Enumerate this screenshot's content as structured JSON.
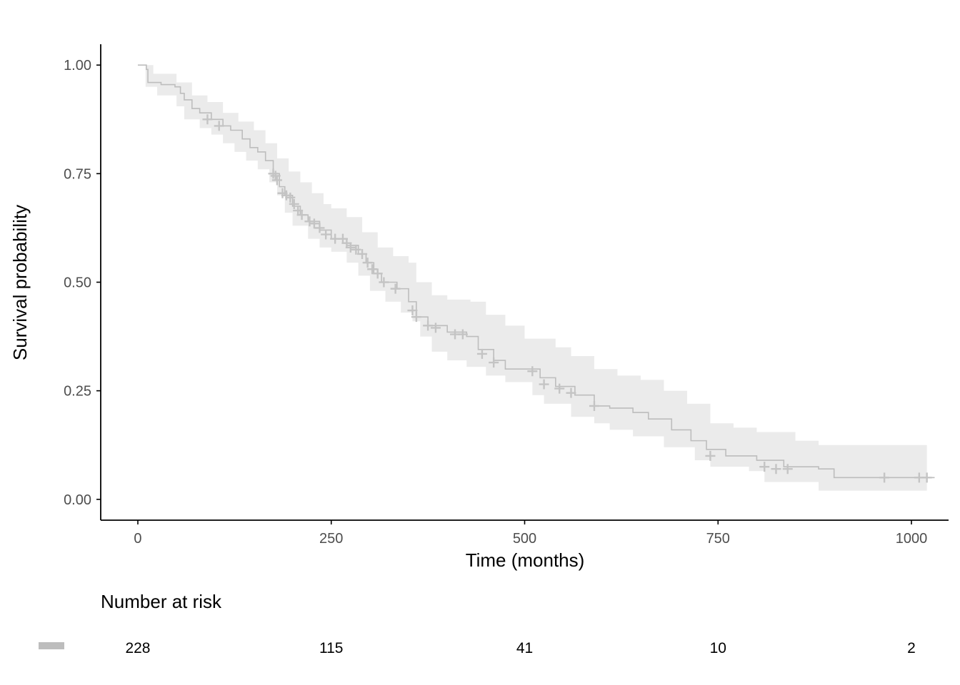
{
  "chart_data": {
    "type": "line",
    "subtype": "kaplan-meier",
    "title": "",
    "xlabel": "Time (months)",
    "ylabel": "Survival probability",
    "xlim": [
      -48,
      1048
    ],
    "ylim": [
      -0.048,
      1.048
    ],
    "x_ticks": [
      0,
      250,
      500,
      750,
      1000
    ],
    "x_tick_labels": [
      "0",
      "250",
      "500",
      "750",
      "1000"
    ],
    "y_ticks": [
      0,
      0.25,
      0.5,
      0.75,
      1
    ],
    "y_tick_labels": [
      "0.00",
      "0.25",
      "0.50",
      "0.75",
      "1.00"
    ],
    "grid": false,
    "legend": "none",
    "colors": {
      "line": "#bdbdbd",
      "band": "#ebebeb",
      "censor": "#c4c4c4",
      "axis": "#000000"
    },
    "series": [
      {
        "survival_curve": [
          [
            0,
            1.0
          ],
          [
            11,
            0.99
          ],
          [
            13,
            0.96
          ],
          [
            30,
            0.955
          ],
          [
            48,
            0.95
          ],
          [
            55,
            0.935
          ],
          [
            60,
            0.92
          ],
          [
            70,
            0.9
          ],
          [
            80,
            0.89
          ],
          [
            95,
            0.875
          ],
          [
            110,
            0.86
          ],
          [
            120,
            0.85
          ],
          [
            135,
            0.83
          ],
          [
            145,
            0.81
          ],
          [
            155,
            0.8
          ],
          [
            165,
            0.78
          ],
          [
            175,
            0.75
          ],
          [
            183,
            0.72
          ],
          [
            190,
            0.7
          ],
          [
            200,
            0.675
          ],
          [
            210,
            0.655
          ],
          [
            220,
            0.64
          ],
          [
            235,
            0.62
          ],
          [
            250,
            0.6
          ],
          [
            270,
            0.585
          ],
          [
            285,
            0.565
          ],
          [
            295,
            0.545
          ],
          [
            305,
            0.52
          ],
          [
            315,
            0.5
          ],
          [
            335,
            0.485
          ],
          [
            350,
            0.455
          ],
          [
            360,
            0.42
          ],
          [
            375,
            0.4
          ],
          [
            400,
            0.385
          ],
          [
            425,
            0.375
          ],
          [
            440,
            0.345
          ],
          [
            460,
            0.32
          ],
          [
            475,
            0.3
          ],
          [
            520,
            0.28
          ],
          [
            540,
            0.26
          ],
          [
            565,
            0.24
          ],
          [
            590,
            0.215
          ],
          [
            610,
            0.21
          ],
          [
            640,
            0.2
          ],
          [
            660,
            0.185
          ],
          [
            690,
            0.16
          ],
          [
            715,
            0.135
          ],
          [
            735,
            0.115
          ],
          [
            760,
            0.1
          ],
          [
            800,
            0.09
          ],
          [
            835,
            0.075
          ],
          [
            880,
            0.07
          ],
          [
            900,
            0.05
          ],
          [
            1030,
            0.05
          ]
        ],
        "ci_upper": [
          [
            0,
            1.0
          ],
          [
            20,
            0.98
          ],
          [
            50,
            0.96
          ],
          [
            70,
            0.93
          ],
          [
            90,
            0.915
          ],
          [
            110,
            0.89
          ],
          [
            130,
            0.87
          ],
          [
            150,
            0.85
          ],
          [
            165,
            0.82
          ],
          [
            180,
            0.785
          ],
          [
            195,
            0.755
          ],
          [
            210,
            0.73
          ],
          [
            225,
            0.705
          ],
          [
            240,
            0.68
          ],
          [
            250,
            0.67
          ],
          [
            270,
            0.65
          ],
          [
            290,
            0.615
          ],
          [
            310,
            0.58
          ],
          [
            330,
            0.56
          ],
          [
            350,
            0.545
          ],
          [
            360,
            0.5
          ],
          [
            380,
            0.47
          ],
          [
            400,
            0.46
          ],
          [
            430,
            0.455
          ],
          [
            450,
            0.425
          ],
          [
            475,
            0.4
          ],
          [
            500,
            0.37
          ],
          [
            540,
            0.35
          ],
          [
            560,
            0.33
          ],
          [
            590,
            0.3
          ],
          [
            620,
            0.285
          ],
          [
            650,
            0.275
          ],
          [
            680,
            0.25
          ],
          [
            710,
            0.22
          ],
          [
            740,
            0.175
          ],
          [
            770,
            0.165
          ],
          [
            800,
            0.155
          ],
          [
            850,
            0.135
          ],
          [
            880,
            0.125
          ],
          [
            1020,
            0.125
          ]
        ],
        "ci_lower": [
          [
            0,
            1.0
          ],
          [
            10,
            0.95
          ],
          [
            25,
            0.93
          ],
          [
            50,
            0.905
          ],
          [
            60,
            0.875
          ],
          [
            80,
            0.855
          ],
          [
            95,
            0.84
          ],
          [
            110,
            0.82
          ],
          [
            125,
            0.8
          ],
          [
            140,
            0.78
          ],
          [
            155,
            0.76
          ],
          [
            170,
            0.73
          ],
          [
            180,
            0.7
          ],
          [
            190,
            0.66
          ],
          [
            200,
            0.63
          ],
          [
            220,
            0.6
          ],
          [
            235,
            0.58
          ],
          [
            250,
            0.57
          ],
          [
            270,
            0.545
          ],
          [
            285,
            0.515
          ],
          [
            300,
            0.48
          ],
          [
            320,
            0.455
          ],
          [
            340,
            0.43
          ],
          [
            355,
            0.41
          ],
          [
            365,
            0.375
          ],
          [
            380,
            0.34
          ],
          [
            400,
            0.32
          ],
          [
            425,
            0.305
          ],
          [
            450,
            0.285
          ],
          [
            475,
            0.27
          ],
          [
            510,
            0.24
          ],
          [
            525,
            0.22
          ],
          [
            560,
            0.19
          ],
          [
            590,
            0.175
          ],
          [
            610,
            0.16
          ],
          [
            640,
            0.145
          ],
          [
            680,
            0.12
          ],
          [
            720,
            0.09
          ],
          [
            740,
            0.075
          ],
          [
            790,
            0.065
          ],
          [
            810,
            0.04
          ],
          [
            880,
            0.02
          ],
          [
            1020,
            0.02
          ]
        ],
        "censored": [
          [
            90,
            0.875
          ],
          [
            105,
            0.86
          ],
          [
            175,
            0.75
          ],
          [
            178,
            0.745
          ],
          [
            180,
            0.735
          ],
          [
            187,
            0.705
          ],
          [
            192,
            0.7
          ],
          [
            197,
            0.695
          ],
          [
            202,
            0.68
          ],
          [
            207,
            0.665
          ],
          [
            212,
            0.655
          ],
          [
            222,
            0.64
          ],
          [
            228,
            0.635
          ],
          [
            235,
            0.625
          ],
          [
            243,
            0.61
          ],
          [
            255,
            0.6
          ],
          [
            265,
            0.6
          ],
          [
            270,
            0.59
          ],
          [
            275,
            0.58
          ],
          [
            282,
            0.575
          ],
          [
            290,
            0.565
          ],
          [
            297,
            0.545
          ],
          [
            303,
            0.53
          ],
          [
            310,
            0.52
          ],
          [
            318,
            0.5
          ],
          [
            333,
            0.485
          ],
          [
            355,
            0.435
          ],
          [
            360,
            0.42
          ],
          [
            375,
            0.4
          ],
          [
            385,
            0.395
          ],
          [
            410,
            0.38
          ],
          [
            420,
            0.38
          ],
          [
            445,
            0.335
          ],
          [
            460,
            0.315
          ],
          [
            510,
            0.295
          ],
          [
            525,
            0.265
          ],
          [
            545,
            0.255
          ],
          [
            560,
            0.245
          ],
          [
            590,
            0.215
          ],
          [
            740,
            0.1
          ],
          [
            810,
            0.075
          ],
          [
            825,
            0.07
          ],
          [
            840,
            0.07
          ],
          [
            965,
            0.05
          ],
          [
            1010,
            0.05
          ],
          [
            1020,
            0.05
          ]
        ]
      }
    ],
    "risk_table": {
      "title": "Number at risk",
      "times": [
        0,
        250,
        500,
        750,
        1000
      ],
      "labels": [
        "228",
        "115",
        "41",
        "10",
        "2"
      ]
    }
  }
}
